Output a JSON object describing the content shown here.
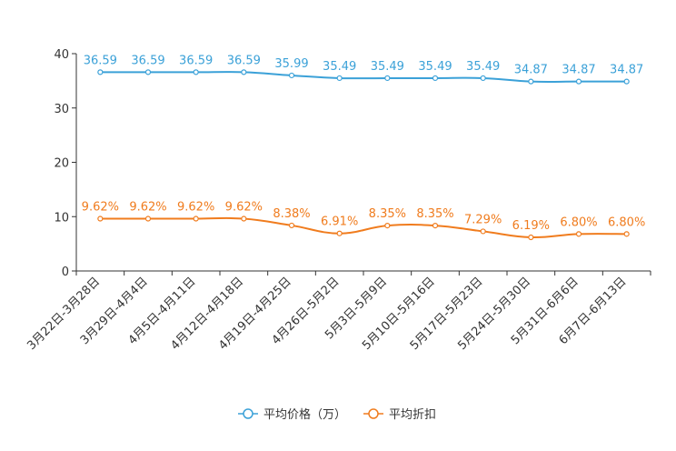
{
  "chart_data": {
    "type": "line",
    "title": "",
    "xlabel": "",
    "ylabel": "",
    "ylim": [
      0,
      40
    ],
    "yticks": [
      "0",
      "10",
      "20",
      "30",
      "40"
    ],
    "categories": [
      "3月22日-3月28日",
      "3月29日-4月4日",
      "4月5日-4月11日",
      "4月12日-4月18日",
      "4月19日-4月25日",
      "4月26日-5月2日",
      "5月3日-5月9日",
      "5月10日-5月16日",
      "5月17日-5月23日",
      "5月24日-5月30日",
      "5月31日-6月6日",
      "6月7日-6月13日"
    ],
    "series": [
      {
        "name": "平均价格（万）",
        "color": "#3ba1d8",
        "values": [
          36.59,
          36.59,
          36.59,
          36.59,
          35.99,
          35.49,
          35.49,
          35.49,
          35.49,
          34.87,
          34.87,
          34.87
        ],
        "labels": [
          "36.59",
          "36.59",
          "36.59",
          "36.59",
          "35.99",
          "35.49",
          "35.49",
          "35.49",
          "35.49",
          "34.87",
          "34.87",
          "34.87"
        ]
      },
      {
        "name": "平均折扣",
        "color": "#f07c1e",
        "values": [
          9.62,
          9.62,
          9.62,
          9.62,
          8.38,
          6.91,
          8.35,
          8.35,
          7.29,
          6.19,
          6.8,
          6.8
        ],
        "labels": [
          "9.62%",
          "9.62%",
          "9.62%",
          "9.62%",
          "8.38%",
          "6.91%",
          "8.35%",
          "8.35%",
          "7.29%",
          "6.19%",
          "6.80%",
          "6.80%"
        ]
      }
    ],
    "legend_position": "bottom-center"
  }
}
